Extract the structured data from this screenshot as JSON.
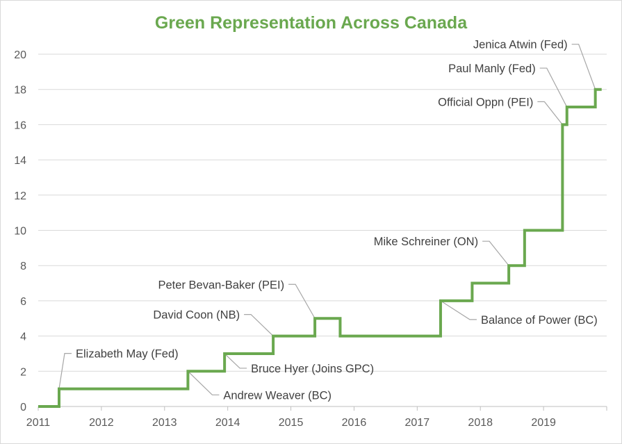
{
  "chart_data": {
    "type": "line",
    "step": true,
    "title": "Green Representation Across Canada",
    "xlabel": "",
    "ylabel": "",
    "xlim": [
      2011,
      2020
    ],
    "ylim": [
      0,
      20
    ],
    "x_ticks": [
      "2011",
      "2012",
      "2013",
      "2014",
      "2015",
      "2016",
      "2017",
      "2018",
      "2019"
    ],
    "y_ticks": [
      "0",
      "2",
      "4",
      "6",
      "8",
      "10",
      "12",
      "14",
      "16",
      "18",
      "20"
    ],
    "grid": "horizontal",
    "legend": "none",
    "color": "#6aa84f",
    "series": [
      {
        "x": [
          2011.0,
          2011.33,
          2013.37,
          2013.95,
          2014.72,
          2015.38,
          2015.78,
          2017.37,
          2017.87,
          2018.45,
          2018.7,
          2019.3,
          2019.37,
          2019.82,
          2019.92
        ],
        "values": [
          0,
          1,
          2,
          3,
          4,
          5,
          4,
          6,
          7,
          8,
          10,
          16,
          17,
          18,
          18
        ]
      }
    ],
    "annotations": [
      {
        "text": "Elizabeth May (Fed)",
        "x": 2011.33,
        "y": 1
      },
      {
        "text": "Andrew Weaver (BC)",
        "x": 2013.37,
        "y": 2
      },
      {
        "text": "Bruce Hyer (Joins GPC)",
        "x": 2013.95,
        "y": 3
      },
      {
        "text": "David Coon (NB)",
        "x": 2014.72,
        "y": 4
      },
      {
        "text": "Peter Bevan-Baker (PEI)",
        "x": 2015.38,
        "y": 5
      },
      {
        "text": "Balance of Power (BC)",
        "x": 2017.37,
        "y": 6
      },
      {
        "text": "Mike Schreiner (ON)",
        "x": 2018.45,
        "y": 8
      },
      {
        "text": "Official Oppn (PEI)",
        "x": 2019.3,
        "y": 16
      },
      {
        "text": "Paul Manly (Fed)",
        "x": 2019.37,
        "y": 17
      },
      {
        "text": "Jenica Atwin (Fed)",
        "x": 2019.82,
        "y": 18
      }
    ]
  }
}
